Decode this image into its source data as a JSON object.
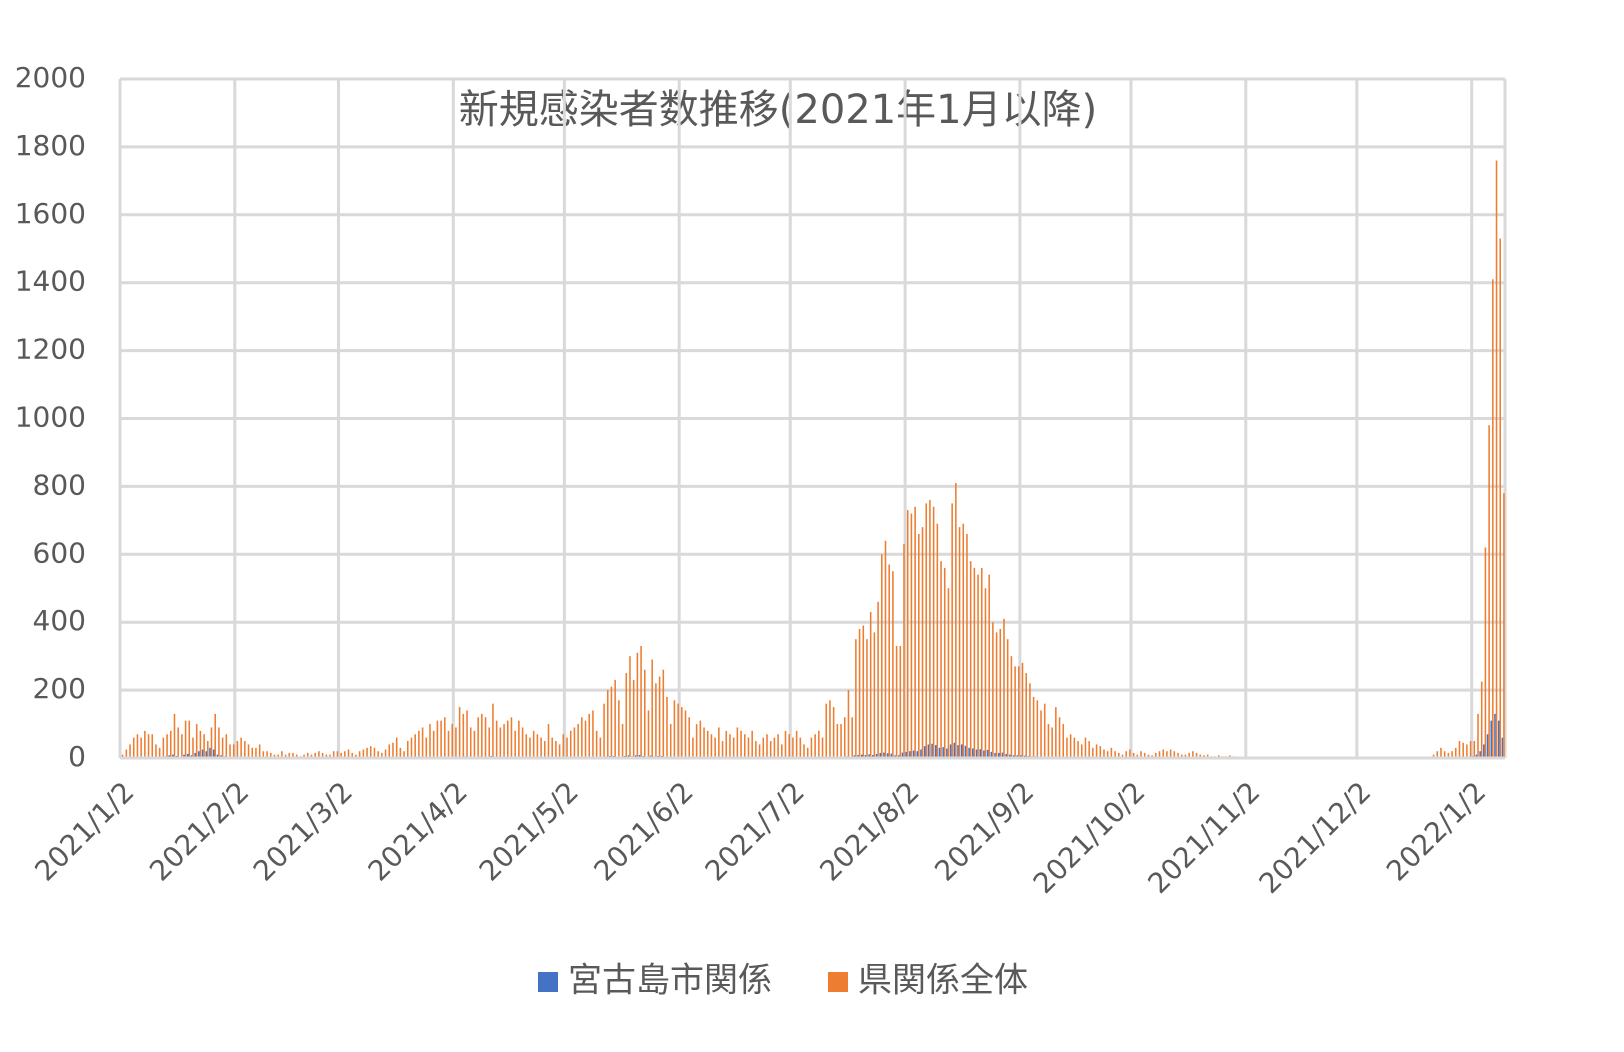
{
  "chart_data": {
    "type": "bar",
    "title": "新規感染者数推移(2021年1月以降)",
    "categories": [
      "2021/1/2",
      null,
      null,
      null,
      null,
      null,
      null,
      null,
      null,
      null,
      null,
      null,
      null,
      null,
      null,
      null,
      null,
      null,
      null,
      null,
      null,
      null,
      null,
      null,
      null,
      null,
      null,
      null,
      null,
      null,
      null,
      "2021/2/2",
      null,
      null,
      null,
      null,
      null,
      null,
      null,
      null,
      null,
      null,
      null,
      null,
      null,
      null,
      null,
      null,
      null,
      null,
      null,
      null,
      null,
      null,
      null,
      null,
      null,
      null,
      null,
      "2021/3/2",
      null,
      null,
      null,
      null,
      null,
      null,
      null,
      null,
      null,
      null,
      null,
      null,
      null,
      null,
      null,
      null,
      null,
      null,
      null,
      null,
      null,
      null,
      null,
      null,
      null,
      null,
      null,
      null,
      null,
      null,
      "2021/4/2",
      null,
      null,
      null,
      null,
      null,
      null,
      null,
      null,
      null,
      null,
      null,
      null,
      null,
      null,
      null,
      null,
      null,
      null,
      null,
      null,
      null,
      null,
      null,
      null,
      null,
      null,
      null,
      null,
      null,
      "2021/5/2",
      null,
      null,
      null,
      null,
      null,
      null,
      null,
      null,
      null,
      null,
      null,
      null,
      null,
      null,
      null,
      null,
      null,
      null,
      null,
      null,
      null,
      null,
      null,
      null,
      null,
      null,
      null,
      null,
      null,
      null,
      "2021/6/2",
      null,
      null,
      null,
      null,
      null,
      null,
      null,
      null,
      null,
      null,
      null,
      null,
      null,
      null,
      null,
      null,
      null,
      null,
      null,
      null,
      null,
      null,
      null,
      null,
      null,
      null,
      null,
      null,
      null,
      "2021/7/2",
      null,
      null,
      null,
      null,
      null,
      null,
      null,
      null,
      null,
      null,
      null,
      null,
      null,
      null,
      null,
      null,
      null,
      null,
      null,
      null,
      null,
      null,
      null,
      null,
      null,
      null,
      null,
      null,
      null,
      null,
      "2021/8/2",
      null,
      null,
      null,
      null,
      null,
      null,
      null,
      null,
      null,
      null,
      null,
      null,
      null,
      null,
      null,
      null,
      null,
      null,
      null,
      null,
      null,
      null,
      null,
      null,
      null,
      null,
      null,
      null,
      null,
      null,
      "2021/9/2",
      null,
      null,
      null,
      null,
      null,
      null,
      null,
      null,
      null,
      null,
      null,
      null,
      null,
      null,
      null,
      null,
      null,
      null,
      null,
      null,
      null,
      null,
      null,
      null,
      null,
      null,
      null,
      null,
      null,
      "2021/10/2",
      null,
      null,
      null,
      null,
      null,
      null,
      null,
      null,
      null,
      null,
      null,
      null,
      null,
      null,
      null,
      null,
      null,
      null,
      null,
      null,
      null,
      null,
      null,
      null,
      null,
      null,
      null,
      null,
      null,
      null,
      "2021/11/2",
      null,
      null,
      null,
      null,
      null,
      null,
      null,
      null,
      null,
      null,
      null,
      null,
      null,
      null,
      null,
      null,
      null,
      null,
      null,
      null,
      null,
      null,
      null,
      null,
      null,
      null,
      null,
      null,
      null,
      "2021/12/2",
      null,
      null,
      null,
      null,
      null,
      null,
      null,
      null,
      null,
      null,
      null,
      null,
      null,
      null,
      null,
      null,
      null,
      null,
      null,
      null,
      null,
      null,
      null,
      null,
      null,
      null,
      null,
      null,
      null,
      null,
      "2022/1/2",
      null,
      null,
      null,
      null,
      null,
      null,
      null,
      null
    ],
    "series": [
      {
        "name": "宮古島市関係",
        "color": "#4472c4",
        "values": [
          0,
          1,
          2,
          3,
          2,
          3,
          2,
          4,
          3,
          2,
          1,
          3,
          5,
          8,
          10,
          6,
          4,
          10,
          12,
          8,
          15,
          20,
          25,
          20,
          30,
          25,
          10,
          8,
          5,
          3,
          2,
          3,
          2,
          2,
          1,
          1,
          1,
          2,
          0,
          1,
          0,
          0,
          1,
          0,
          0,
          1,
          0,
          0,
          0,
          1,
          0,
          0,
          1,
          0,
          0,
          0,
          1,
          0,
          0,
          0,
          0,
          1,
          0,
          0,
          1,
          0,
          1,
          1,
          0,
          0,
          0,
          1,
          2,
          1,
          2,
          1,
          0,
          2,
          1,
          2,
          3,
          2,
          1,
          3,
          2,
          3,
          4,
          3,
          2,
          3,
          2,
          4,
          3,
          5,
          2,
          2,
          4,
          5,
          3,
          2,
          6,
          3,
          2,
          3,
          4,
          3,
          2,
          3,
          2,
          2,
          1,
          2,
          2,
          1,
          1,
          3,
          1,
          1,
          1,
          2,
          1,
          2,
          2,
          3,
          3,
          2,
          3,
          4,
          2,
          1,
          4,
          5,
          6,
          6,
          4,
          2,
          6,
          8,
          5,
          8,
          9,
          6,
          3,
          7,
          5,
          6,
          6,
          4,
          2,
          4,
          3,
          3,
          3,
          2,
          1,
          2,
          2,
          2,
          1,
          1,
          1,
          2,
          1,
          2,
          1,
          1,
          2,
          2,
          1,
          1,
          2,
          1,
          1,
          1,
          2,
          1,
          1,
          2,
          1,
          2,
          1,
          1,
          2,
          1,
          1,
          1,
          1,
          2,
          2,
          1,
          3,
          4,
          3,
          2,
          2,
          3,
          5,
          3,
          8,
          9,
          10,
          9,
          11,
          9,
          12,
          15,
          16,
          14,
          13,
          8,
          8,
          16,
          18,
          20,
          22,
          20,
          25,
          35,
          40,
          42,
          38,
          30,
          32,
          28,
          40,
          45,
          38,
          40,
          36,
          30,
          28,
          25,
          26,
          22,
          24,
          18,
          15,
          15,
          16,
          12,
          10,
          8,
          8,
          8,
          7,
          6,
          5,
          5,
          4,
          4,
          3,
          2,
          4,
          3,
          2,
          1,
          2,
          1,
          1,
          1,
          1,
          1,
          0,
          1,
          1,
          0,
          0,
          1,
          1,
          0,
          0,
          1,
          0,
          0,
          0,
          1,
          0,
          0,
          0,
          1,
          1,
          1,
          0,
          1,
          0,
          0,
          0,
          0,
          1,
          1,
          0,
          0,
          0,
          0,
          0,
          0,
          0,
          0,
          0,
          0,
          0,
          0,
          0,
          0,
          0,
          0,
          0,
          0,
          0,
          0,
          0,
          0,
          0,
          0,
          0,
          0,
          0,
          0,
          0,
          0,
          0,
          0,
          0,
          0,
          0,
          0,
          0,
          0,
          0,
          0,
          0,
          0,
          0,
          0,
          0,
          0,
          0,
          0,
          0,
          0,
          0,
          0,
          0,
          0,
          0,
          0,
          0,
          0,
          0,
          0,
          0,
          0,
          0,
          0,
          0,
          1,
          1,
          1,
          0,
          1,
          1,
          2,
          2,
          2,
          3,
          5,
          10,
          20,
          40,
          70,
          110,
          130,
          110,
          60
        ]
      },
      {
        "name": "県関係全体",
        "color": "#ed7d31",
        "values": [
          10,
          25,
          40,
          60,
          70,
          60,
          80,
          70,
          70,
          40,
          30,
          60,
          70,
          80,
          130,
          90,
          70,
          110,
          110,
          60,
          100,
          80,
          70,
          50,
          90,
          130,
          90,
          60,
          70,
          40,
          40,
          50,
          60,
          50,
          40,
          30,
          30,
          40,
          20,
          20,
          15,
          10,
          10,
          20,
          10,
          15,
          15,
          10,
          5,
          10,
          15,
          10,
          15,
          20,
          15,
          10,
          10,
          20,
          20,
          15,
          20,
          25,
          15,
          10,
          20,
          25,
          30,
          35,
          30,
          20,
          15,
          25,
          40,
          45,
          60,
          30,
          20,
          50,
          60,
          70,
          80,
          90,
          60,
          100,
          80,
          110,
          110,
          120,
          80,
          100,
          90,
          150,
          130,
          140,
          90,
          80,
          120,
          130,
          120,
          90,
          160,
          110,
          90,
          100,
          110,
          120,
          80,
          110,
          90,
          70,
          60,
          80,
          70,
          60,
          50,
          100,
          60,
          50,
          40,
          70,
          60,
          80,
          90,
          100,
          120,
          110,
          130,
          140,
          80,
          60,
          160,
          200,
          210,
          230,
          170,
          100,
          250,
          300,
          230,
          310,
          330,
          260,
          140,
          290,
          220,
          240,
          260,
          180,
          100,
          170,
          160,
          150,
          140,
          120,
          60,
          100,
          110,
          90,
          80,
          70,
          60,
          90,
          50,
          80,
          70,
          60,
          90,
          80,
          70,
          60,
          80,
          50,
          40,
          60,
          70,
          50,
          60,
          70,
          40,
          80,
          70,
          60,
          80,
          60,
          40,
          30,
          60,
          70,
          80,
          60,
          160,
          170,
          150,
          100,
          100,
          120,
          200,
          120,
          350,
          380,
          390,
          350,
          430,
          370,
          460,
          600,
          640,
          570,
          550,
          330,
          330,
          630,
          730,
          720,
          740,
          660,
          680,
          750,
          760,
          740,
          690,
          580,
          560,
          500,
          750,
          810,
          680,
          690,
          660,
          580,
          560,
          540,
          560,
          500,
          540,
          400,
          370,
          380,
          410,
          350,
          300,
          270,
          270,
          280,
          250,
          220,
          180,
          170,
          140,
          160,
          100,
          90,
          150,
          120,
          100,
          60,
          70,
          60,
          50,
          40,
          60,
          50,
          30,
          40,
          35,
          25,
          20,
          30,
          20,
          15,
          10,
          20,
          25,
          15,
          10,
          20,
          15,
          10,
          8,
          15,
          20,
          25,
          20,
          25,
          20,
          15,
          10,
          10,
          15,
          20,
          15,
          10,
          8,
          10,
          5,
          5,
          8,
          5,
          5,
          8,
          5,
          4,
          3,
          3,
          3,
          2,
          2,
          3,
          2,
          2,
          1,
          1,
          1,
          1,
          1,
          1,
          1,
          1,
          1,
          0,
          1,
          0,
          1,
          1,
          0,
          1,
          0,
          1,
          1,
          0,
          0,
          1,
          0,
          0,
          0,
          0,
          0,
          0,
          0,
          0,
          0,
          0,
          0,
          0,
          0,
          0,
          0,
          0,
          0,
          0,
          0,
          0,
          0,
          0,
          10,
          20,
          30,
          20,
          15,
          20,
          30,
          50,
          45,
          40,
          50,
          50,
          130,
          225,
          620,
          980,
          1410,
          1760,
          1530,
          780
        ]
      }
    ],
    "ylim": [
      0,
      2000
    ],
    "yticks": [
      0,
      200,
      400,
      600,
      800,
      1000,
      1200,
      1400,
      1600,
      1800,
      2000
    ],
    "grid": true,
    "legend": "bottom"
  }
}
